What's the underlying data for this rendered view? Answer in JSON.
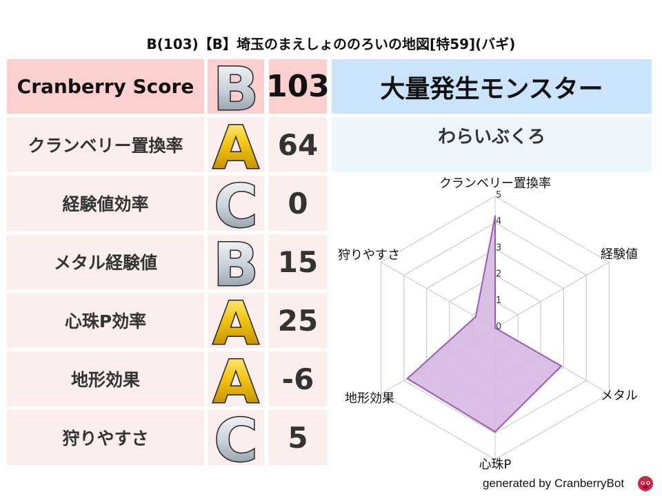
{
  "title": "B(103)【B】埼玉のまえしょののろいの地図[特59](バギ)",
  "score_table": {
    "header": {
      "label": "Cranberry Score",
      "grade": "B",
      "value": "103"
    },
    "rows": [
      {
        "label": "クランベリー置換率",
        "grade": "A",
        "value": "64"
      },
      {
        "label": "経験値効率",
        "grade": "C",
        "value": "0"
      },
      {
        "label": "メタル経験値",
        "grade": "B",
        "value": "15"
      },
      {
        "label": "心珠P効率",
        "grade": "A",
        "value": "25"
      },
      {
        "label": "地形効果",
        "grade": "A",
        "value": "-6"
      },
      {
        "label": "狩りやすさ",
        "grade": "C",
        "value": "5"
      }
    ]
  },
  "monster": {
    "header": "大量発生モンスター",
    "name": "わらいぶくろ"
  },
  "chart_data": {
    "type": "radar",
    "axes": [
      "クランベリー置換率",
      "経験値",
      "メタル",
      "心珠P",
      "地形効果",
      "狩りやすさ"
    ],
    "values": [
      4.25,
      0,
      2.9,
      3.95,
      3.85,
      0.85
    ],
    "range": [
      0,
      5
    ],
    "ticks": [
      "0",
      "1",
      "2",
      "3",
      "4",
      "5"
    ],
    "grid": true,
    "fill_color": "#d5b8e0",
    "line_color": "#9b59b6"
  },
  "colors": {
    "header_row": "#fdd0d0",
    "row": "#fdeeee",
    "monster_header": "#cce4fb",
    "monster_name": "#eef6fd",
    "grade_gold": "#f2c40f",
    "grade_silver": "#c8d2da"
  },
  "footer": {
    "text": "generated by CranberryBot",
    "icon": "cranberry-bot-icon"
  }
}
